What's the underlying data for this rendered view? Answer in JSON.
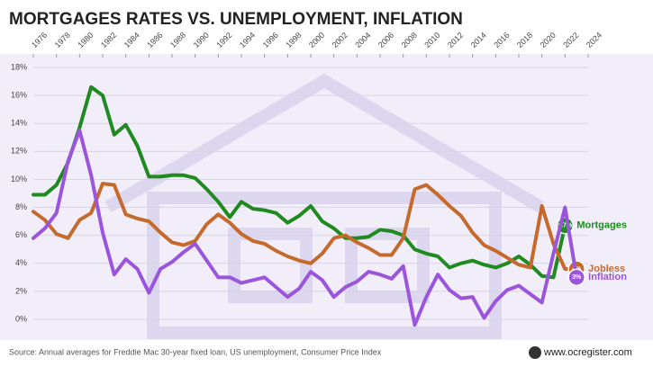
{
  "chart_data": {
    "type": "line",
    "title": "MORTGAGES RATES VS. UNEMPLOYMENT, INFLATION",
    "source": "Source: Annual averages for Freddie Mac 30-year fixed loan, US unemployment, Consumer Price Index",
    "credit": "www.ocregister.com",
    "x": [
      1976,
      1977,
      1978,
      1979,
      1980,
      1981,
      1982,
      1983,
      1984,
      1985,
      1986,
      1987,
      1988,
      1989,
      1990,
      1991,
      1992,
      1993,
      1994,
      1995,
      1996,
      1997,
      1998,
      1999,
      2000,
      2001,
      2002,
      2003,
      2004,
      2005,
      2006,
      2007,
      2008,
      2009,
      2010,
      2011,
      2012,
      2013,
      2014,
      2015,
      2016,
      2017,
      2018,
      2019,
      2020,
      2021,
      2022,
      2023
    ],
    "series": [
      {
        "name": "Mortgages",
        "color": "#1f8a1f",
        "values": [
          8.9,
          8.9,
          9.6,
          11.2,
          13.7,
          16.6,
          16.0,
          13.2,
          13.9,
          12.4,
          10.2,
          10.2,
          10.3,
          10.3,
          10.1,
          9.3,
          8.4,
          7.3,
          8.4,
          7.9,
          7.8,
          7.6,
          6.9,
          7.4,
          8.1,
          7.0,
          6.5,
          5.8,
          5.8,
          5.9,
          6.4,
          6.3,
          6.0,
          5.0,
          4.7,
          4.5,
          3.7,
          4.0,
          4.2,
          3.9,
          3.7,
          4.0,
          4.5,
          3.9,
          3.1,
          3.0,
          6.7,
          null
        ],
        "value_labels": [
          null,
          null,
          null,
          null,
          null,
          null,
          null,
          null,
          null,
          null,
          null,
          null,
          null,
          null,
          null,
          null,
          null,
          null,
          null,
          null,
          null,
          null,
          null,
          null,
          null,
          null,
          null,
          null,
          null,
          null,
          null,
          null,
          null,
          null,
          null,
          null,
          null,
          null,
          null,
          null,
          null,
          null,
          null,
          null,
          null,
          null,
          "6.7%",
          null
        ]
      },
      {
        "name": "Jobless",
        "color": "#c56a2c",
        "values": [
          7.7,
          7.1,
          6.1,
          5.8,
          7.1,
          7.6,
          9.7,
          9.6,
          7.5,
          7.2,
          7.0,
          6.2,
          5.5,
          5.3,
          5.6,
          6.8,
          7.5,
          6.9,
          6.1,
          5.6,
          5.4,
          4.9,
          4.5,
          4.2,
          4.0,
          4.7,
          5.8,
          6.0,
          5.5,
          5.1,
          4.6,
          4.6,
          5.8,
          9.3,
          9.6,
          8.9,
          8.1,
          7.4,
          6.2,
          5.3,
          4.9,
          4.4,
          3.9,
          3.7,
          8.1,
          5.4,
          3.6,
          3.6
        ],
        "value_labels": [
          null,
          null,
          null,
          null,
          null,
          null,
          null,
          null,
          null,
          null,
          null,
          null,
          null,
          null,
          null,
          null,
          null,
          null,
          null,
          null,
          null,
          null,
          null,
          null,
          null,
          null,
          null,
          null,
          null,
          null,
          null,
          null,
          null,
          null,
          null,
          null,
          null,
          null,
          null,
          null,
          null,
          null,
          null,
          null,
          null,
          null,
          null,
          "4%"
        ]
      },
      {
        "name": "Inflation",
        "color": "#9b55dc",
        "values": [
          5.8,
          6.5,
          7.6,
          11.3,
          13.5,
          10.3,
          6.2,
          3.2,
          4.3,
          3.6,
          1.9,
          3.6,
          4.1,
          4.8,
          5.4,
          4.2,
          3.0,
          3.0,
          2.6,
          2.8,
          3.0,
          2.3,
          1.6,
          2.2,
          3.4,
          2.8,
          1.6,
          2.3,
          2.7,
          3.4,
          3.2,
          2.9,
          3.8,
          -0.4,
          1.6,
          3.2,
          2.1,
          1.5,
          1.6,
          0.1,
          1.3,
          2.1,
          2.4,
          1.8,
          1.2,
          4.7,
          8.0,
          3.0
        ],
        "value_labels": [
          null,
          null,
          null,
          null,
          null,
          null,
          null,
          null,
          null,
          null,
          null,
          null,
          null,
          null,
          null,
          null,
          null,
          null,
          null,
          null,
          null,
          null,
          null,
          null,
          null,
          null,
          null,
          null,
          null,
          null,
          null,
          null,
          null,
          null,
          null,
          null,
          null,
          null,
          null,
          null,
          null,
          null,
          null,
          null,
          null,
          null,
          null,
          "3%"
        ]
      }
    ],
    "xlim": [
      1976,
      2024
    ],
    "xticks": [
      1976,
      1978,
      1980,
      1982,
      1984,
      1986,
      1988,
      1990,
      1992,
      1994,
      1996,
      1998,
      2000,
      2002,
      2004,
      2006,
      2008,
      2010,
      2012,
      2014,
      2016,
      2018,
      2020,
      2022,
      2024
    ],
    "ylim": [
      0,
      18
    ],
    "yticks": [
      {
        "value": 0,
        "label": "0%"
      },
      {
        "value": 2,
        "label": "2%"
      },
      {
        "value": 4,
        "label": "4%"
      },
      {
        "value": 6,
        "label": "6%"
      },
      {
        "value": 8,
        "label": "8%"
      },
      {
        "value": 10,
        "label": "10%"
      },
      {
        "value": 12,
        "label": "12%"
      },
      {
        "value": 14,
        "label": "14%"
      },
      {
        "value": 16,
        "label": "16%"
      },
      {
        "value": 18,
        "label": "18%"
      }
    ],
    "grid": true
  }
}
